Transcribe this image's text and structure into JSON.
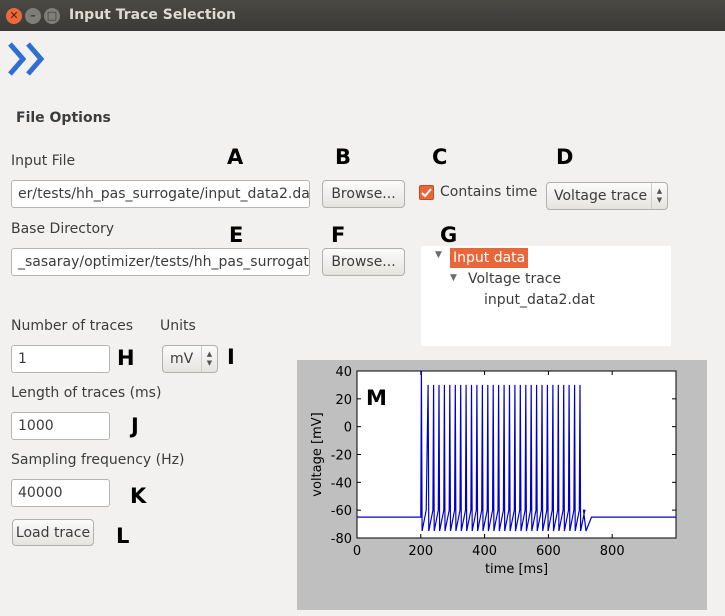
{
  "window": {
    "title": "Input Trace Selection"
  },
  "toolbar": {
    "forward_icon": "double-chevron-right-icon"
  },
  "section": {
    "title": "File Options"
  },
  "input_file": {
    "label": "Input File",
    "value": "er/tests/hh_pas_surrogate/input_data2.dat",
    "browse_label": "Browse..."
  },
  "contains_time": {
    "label": "Contains time",
    "checked": true
  },
  "trace_type": {
    "selected": "Voltage trace"
  },
  "base_directory": {
    "label": "Base Directory",
    "value": "_sasaray/optimizer/tests/hh_pas_surrogate",
    "browse_label": "Browse..."
  },
  "tree": {
    "items": [
      {
        "label": "Input data",
        "selected": true
      },
      {
        "label": "Voltage trace"
      },
      {
        "label": "input_data2.dat"
      }
    ]
  },
  "number_of_traces": {
    "label": "Number of traces",
    "value": "1"
  },
  "units": {
    "label": "Units",
    "selected": "mV"
  },
  "length_of_traces": {
    "label": "Length of traces (ms)",
    "value": "1000"
  },
  "sampling_frequency": {
    "label": "Sampling frequency (Hz)",
    "value": "40000"
  },
  "load_trace": {
    "label": "Load trace"
  },
  "annotations": [
    "A",
    "B",
    "C",
    "D",
    "E",
    "F",
    "G",
    "H",
    "I",
    "J",
    "K",
    "L",
    "M"
  ],
  "chart_data": {
    "type": "line",
    "xlabel": "time [ms]",
    "ylabel": "voltage [mV]",
    "xlim": [
      0,
      1000
    ],
    "ylim": [
      -80,
      40
    ],
    "xticks": [
      "0",
      "200",
      "400",
      "600",
      "800"
    ],
    "yticks": [
      "40",
      "20",
      "0",
      "-20",
      "-40",
      "-60",
      "-80"
    ],
    "series": [
      {
        "color": "#0000cc",
        "description_points": {
          "baseline_mv": -65,
          "stimulus_start_ms": 200,
          "stimulus_end_ms": 710,
          "spike_peak_mv": 30,
          "first_spike_peak_mv": 40,
          "trough_mv": -75,
          "spike_count": 30
        }
      }
    ]
  }
}
